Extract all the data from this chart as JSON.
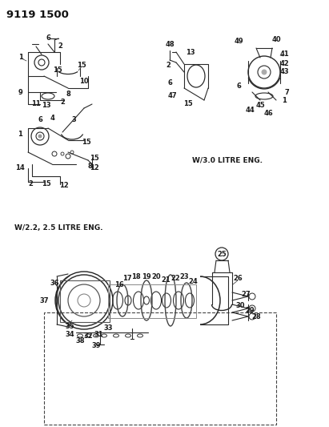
{
  "title": "9119 1500",
  "bg_color": "#ffffff",
  "text_color": "#1a1a1a",
  "label_22_text": "W/2.2, 2.5 LITRE ENG.",
  "label_30_text": "W/3.0 LITRE ENG.",
  "fig_width": 4.11,
  "fig_height": 5.33,
  "dpi": 100,
  "part_numbers_upper_left": [
    1,
    2,
    6,
    9,
    10,
    11,
    13,
    15,
    8
  ],
  "part_numbers_mid_left": [
    1,
    2,
    3,
    4,
    6,
    8,
    12,
    14,
    15
  ],
  "part_numbers_upper_right": [
    1,
    2,
    6,
    7,
    13,
    15,
    40,
    41,
    42,
    43,
    44,
    45,
    46,
    47,
    48,
    49
  ],
  "part_numbers_lower": [
    16,
    17,
    18,
    19,
    20,
    21,
    22,
    23,
    24,
    25,
    26,
    27,
    28,
    29,
    30,
    31,
    32,
    33,
    34,
    35,
    36,
    37,
    38,
    39
  ]
}
